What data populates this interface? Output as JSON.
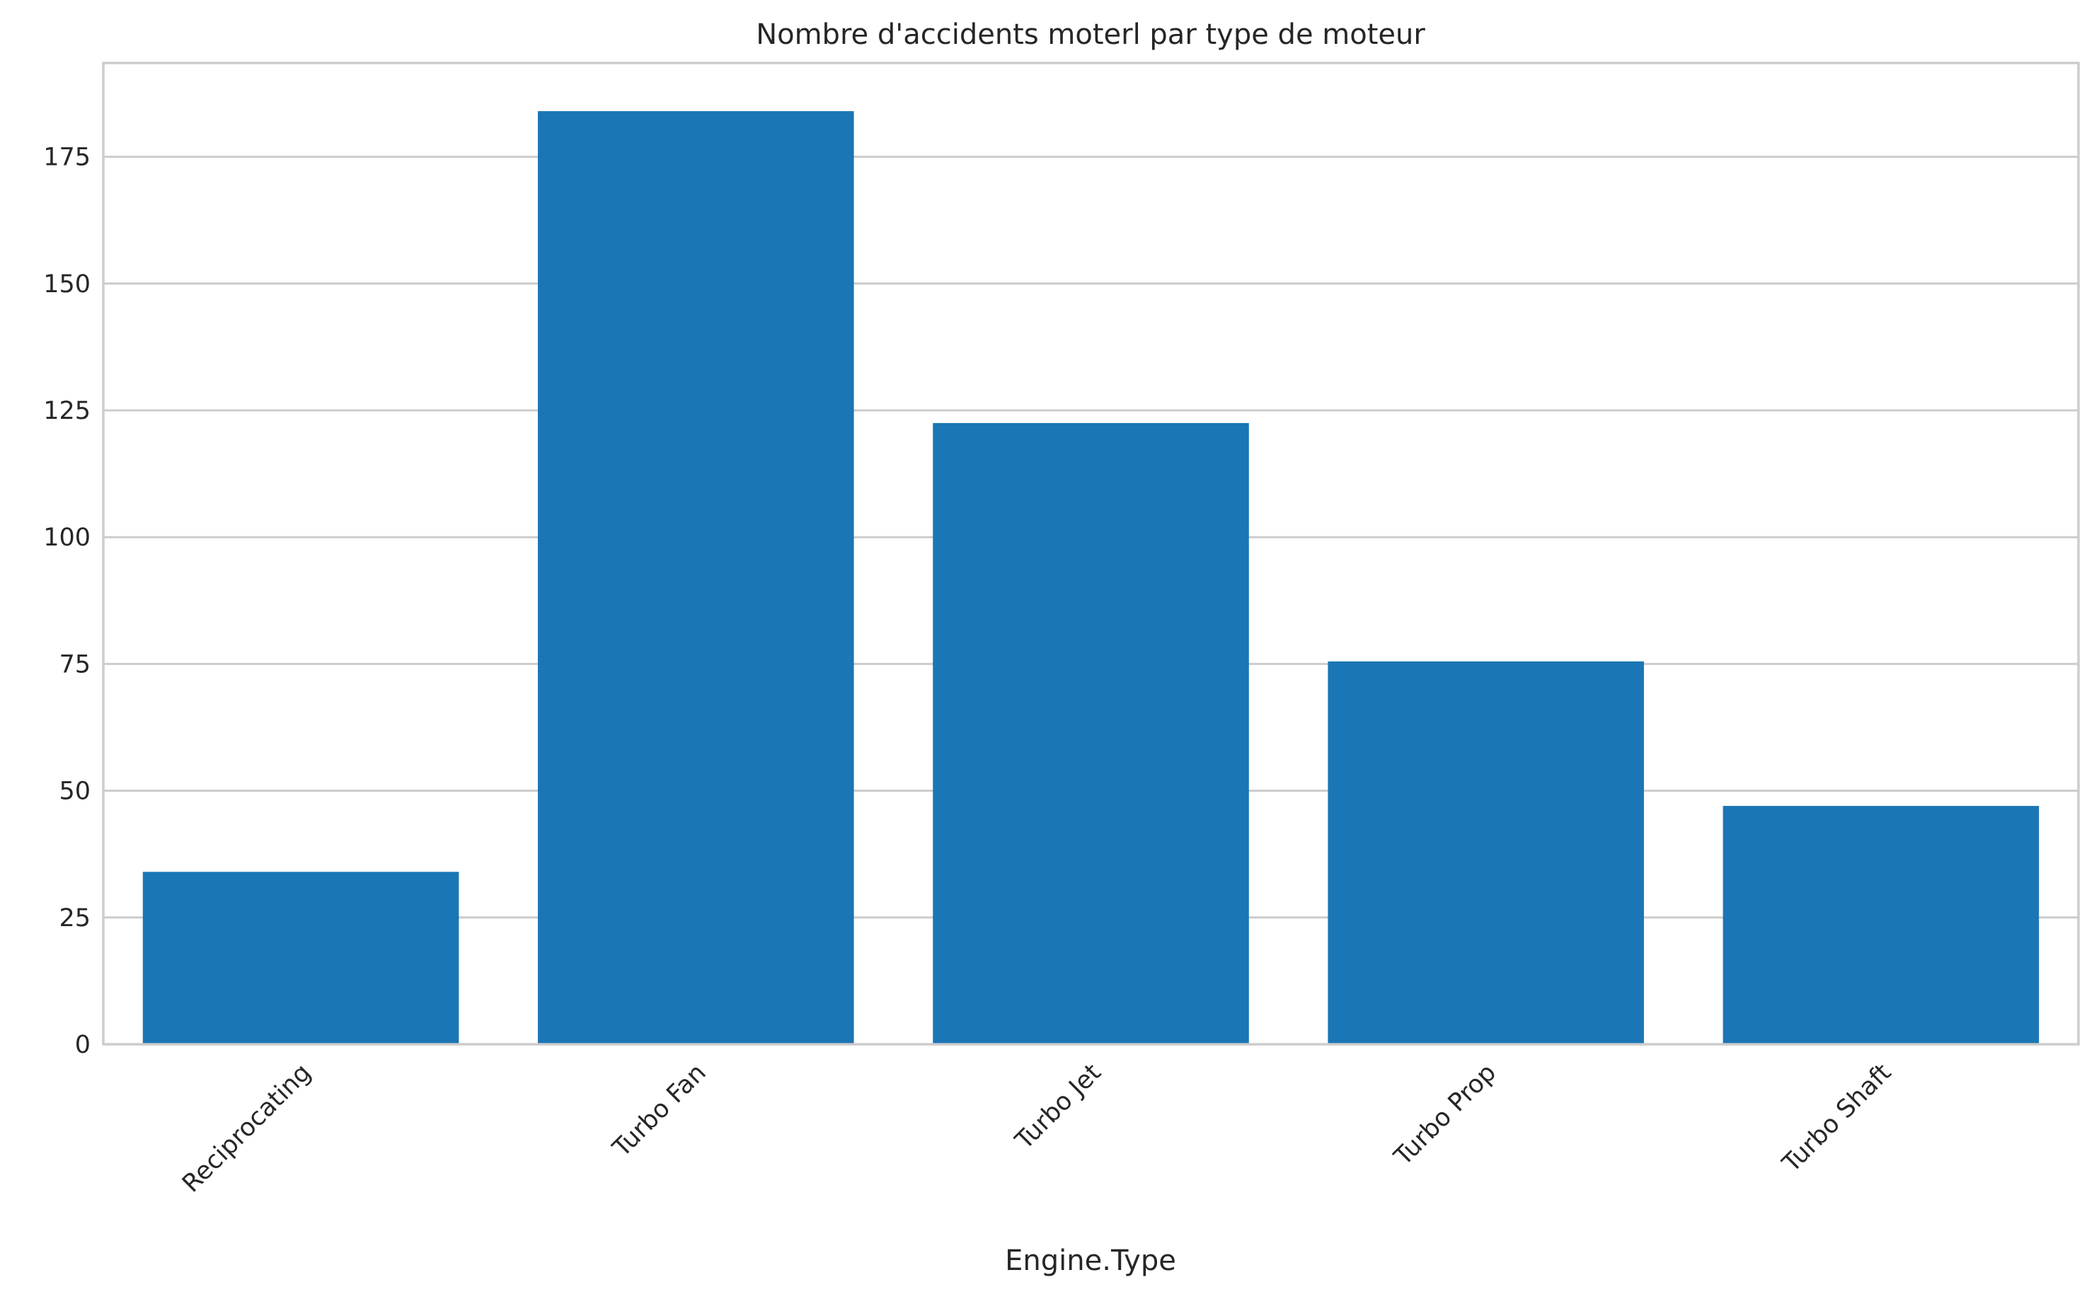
{
  "chart_data": {
    "type": "bar",
    "title": "Nombre d'accidents moterl par type de moteur",
    "xlabel": "Engine.Type",
    "ylabel": "",
    "categories": [
      "Reciprocating",
      "Turbo Fan",
      "Turbo Jet",
      "Turbo Prop",
      "Turbo Shaft"
    ],
    "values": [
      34,
      184,
      122.5,
      75.5,
      47
    ],
    "ylim": [
      0,
      193.5
    ],
    "yticks": [
      0,
      25,
      50,
      75,
      100,
      125,
      150,
      175
    ],
    "grid": true,
    "bar_color": "#1b76b5",
    "grid_color": "#cccccc",
    "text_color": "#262626"
  }
}
